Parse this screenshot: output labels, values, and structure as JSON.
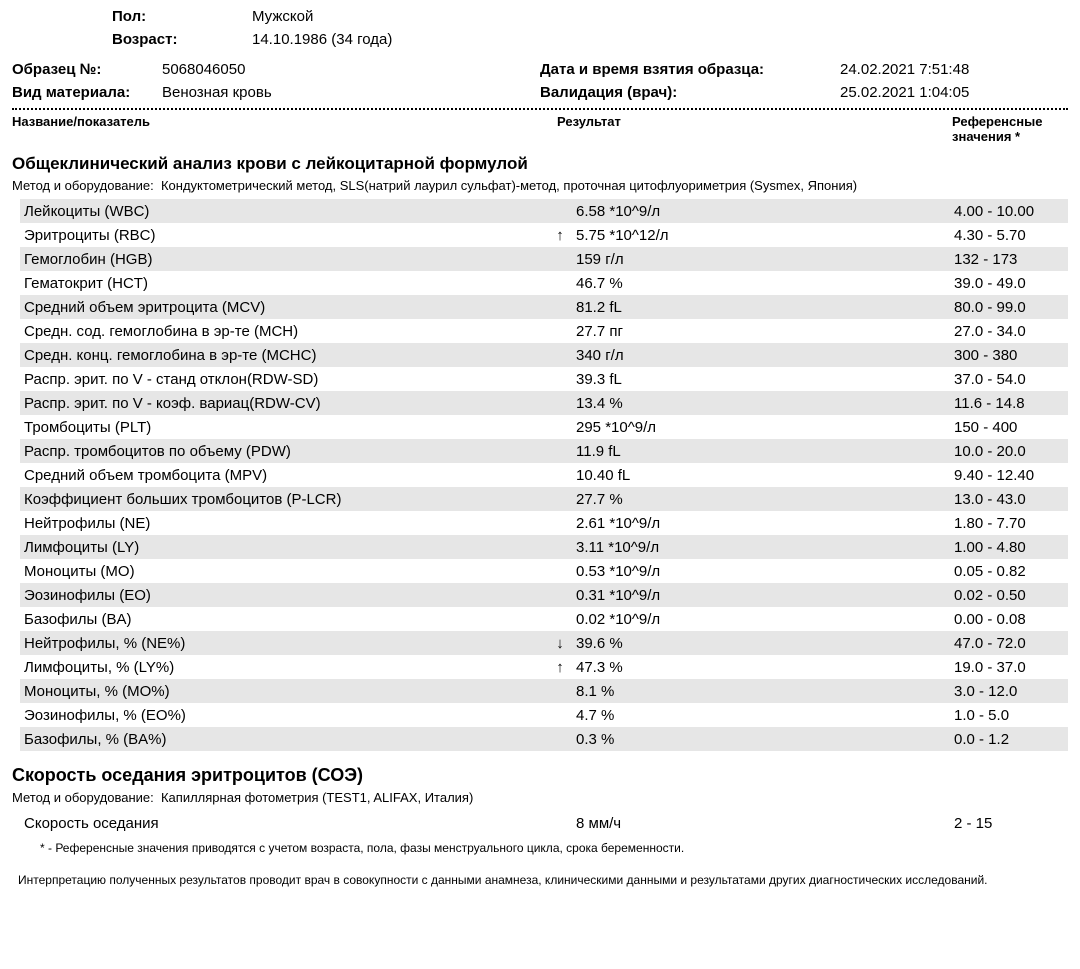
{
  "patient": {
    "sex_label": "Пол:",
    "sex_value": "Мужской",
    "age_label": "Возраст:",
    "age_value": "14.10.1986 (34 года)"
  },
  "meta_left": {
    "sample_no_label": "Образец №:",
    "sample_no_value": "5068046050",
    "material_label": "Вид материала:",
    "material_value": "Венозная кровь"
  },
  "meta_right": {
    "taken_label": "Дата и время взятия образца:",
    "taken_value": "24.02.2021   7:51:48",
    "validation_label": "Валидация (врач):",
    "validation_value": "25.02.2021   1:04:05"
  },
  "columns": {
    "c1": "Название/показатель",
    "c2": "Результат",
    "c3": "Референсные значения *"
  },
  "section1": {
    "title": "Общеклинический анализ крови с лейкоцитарной формулой",
    "method_label": "Метод и оборудование:",
    "method_text": "Кондуктометрический метод, SLS(натрий лаурил сульфат)-метод, проточная цитофлуориметрия (Sysmex, Япония)"
  },
  "rows1": [
    {
      "name": "Лейкоциты (WBC)",
      "arrow": "",
      "result": "6.58 *10^9/л",
      "ref": "4.00 - 10.00",
      "shaded": true
    },
    {
      "name": "Эритроциты (RBC)",
      "arrow": "↑",
      "result": "5.75 *10^12/л",
      "ref": "4.30 - 5.70",
      "shaded": false
    },
    {
      "name": "Гемоглобин (HGB)",
      "arrow": "",
      "result": "159 г/л",
      "ref": "132 - 173",
      "shaded": true
    },
    {
      "name": "Гематокрит (HCT)",
      "arrow": "",
      "result": "46.7 %",
      "ref": "39.0 - 49.0",
      "shaded": false
    },
    {
      "name": "Средний объем эритроцита (MCV)",
      "arrow": "",
      "result": "81.2 fL",
      "ref": "80.0 - 99.0",
      "shaded": true
    },
    {
      "name": "Средн. сод. гемоглобина в эр-те (MCH)",
      "arrow": "",
      "result": "27.7 пг",
      "ref": "27.0 - 34.0",
      "shaded": false
    },
    {
      "name": "Средн. конц. гемоглобина в эр-те (MCHC)",
      "arrow": "",
      "result": "340 г/л",
      "ref": "300 - 380",
      "shaded": true
    },
    {
      "name": "Распр. эрит. по V - станд отклон(RDW-SD)",
      "arrow": "",
      "result": "39.3 fL",
      "ref": "37.0 - 54.0",
      "shaded": false
    },
    {
      "name": "Распр. эрит. по V - коэф. вариац(RDW-CV)",
      "arrow": "",
      "result": "13.4 %",
      "ref": "11.6 - 14.8",
      "shaded": true
    },
    {
      "name": "Тромбоциты (PLT)",
      "arrow": "",
      "result": "295 *10^9/л",
      "ref": "150 - 400",
      "shaded": false
    },
    {
      "name": "Распр. тромбоцитов по объему (PDW)",
      "arrow": "",
      "result": "11.9 fL",
      "ref": "10.0 - 20.0",
      "shaded": true
    },
    {
      "name": "Средний объем тромбоцита (MPV)",
      "arrow": "",
      "result": "10.40 fL",
      "ref": "9.40 - 12.40",
      "shaded": false
    },
    {
      "name": "Коэффициент больших тромбоцитов (P-LCR)",
      "arrow": "",
      "result": "27.7 %",
      "ref": "13.0 - 43.0",
      "shaded": true
    },
    {
      "name": "Нейтрофилы (NE)",
      "arrow": "",
      "result": "2.61 *10^9/л",
      "ref": "1.80 - 7.70",
      "shaded": false
    },
    {
      "name": "Лимфоциты (LY)",
      "arrow": "",
      "result": "3.11 *10^9/л",
      "ref": "1.00 - 4.80",
      "shaded": true
    },
    {
      "name": "Моноциты (MO)",
      "arrow": "",
      "result": "0.53 *10^9/л",
      "ref": "0.05 - 0.82",
      "shaded": false
    },
    {
      "name": "Эозинофилы (EO)",
      "arrow": "",
      "result": "0.31 *10^9/л",
      "ref": "0.02 - 0.50",
      "shaded": true
    },
    {
      "name": "Базофилы (BA)",
      "arrow": "",
      "result": "0.02 *10^9/л",
      "ref": "0.00 - 0.08",
      "shaded": false
    },
    {
      "name": "Нейтрофилы, % (NE%)",
      "arrow": "↓",
      "result": "39.6 %",
      "ref": "47.0 - 72.0",
      "shaded": true
    },
    {
      "name": "Лимфоциты, % (LY%)",
      "arrow": "↑",
      "result": "47.3 %",
      "ref": "19.0 - 37.0",
      "shaded": false
    },
    {
      "name": "Моноциты, % (MO%)",
      "arrow": "",
      "result": "8.1 %",
      "ref": "3.0 - 12.0",
      "shaded": true
    },
    {
      "name": "Эозинофилы, % (EO%)",
      "arrow": "",
      "result": "4.7 %",
      "ref": "1.0 - 5.0",
      "shaded": false
    },
    {
      "name": "Базофилы, % (BA%)",
      "arrow": "",
      "result": "0.3 %",
      "ref": "0.0 - 1.2",
      "shaded": true
    }
  ],
  "section2": {
    "title": "Скорость оседания эритроцитов (СОЭ)",
    "method_label": "Метод и оборудование:",
    "method_text": "Капиллярная фотометрия (TEST1, ALIFAX, Италия)"
  },
  "rows2": [
    {
      "name": "Скорость оседания",
      "arrow": "",
      "result": "8 мм/ч",
      "ref": "2 - 15",
      "shaded": false
    }
  ],
  "footnote": "* - Референсные значения приводятся с учетом возраста, пола, фазы менструального цикла, срока беременности.",
  "interp": "Интерпретацию полученных результатов проводит врач в совокупности с данными анамнеза, клиническими данными и результатами других диагностических исследований."
}
